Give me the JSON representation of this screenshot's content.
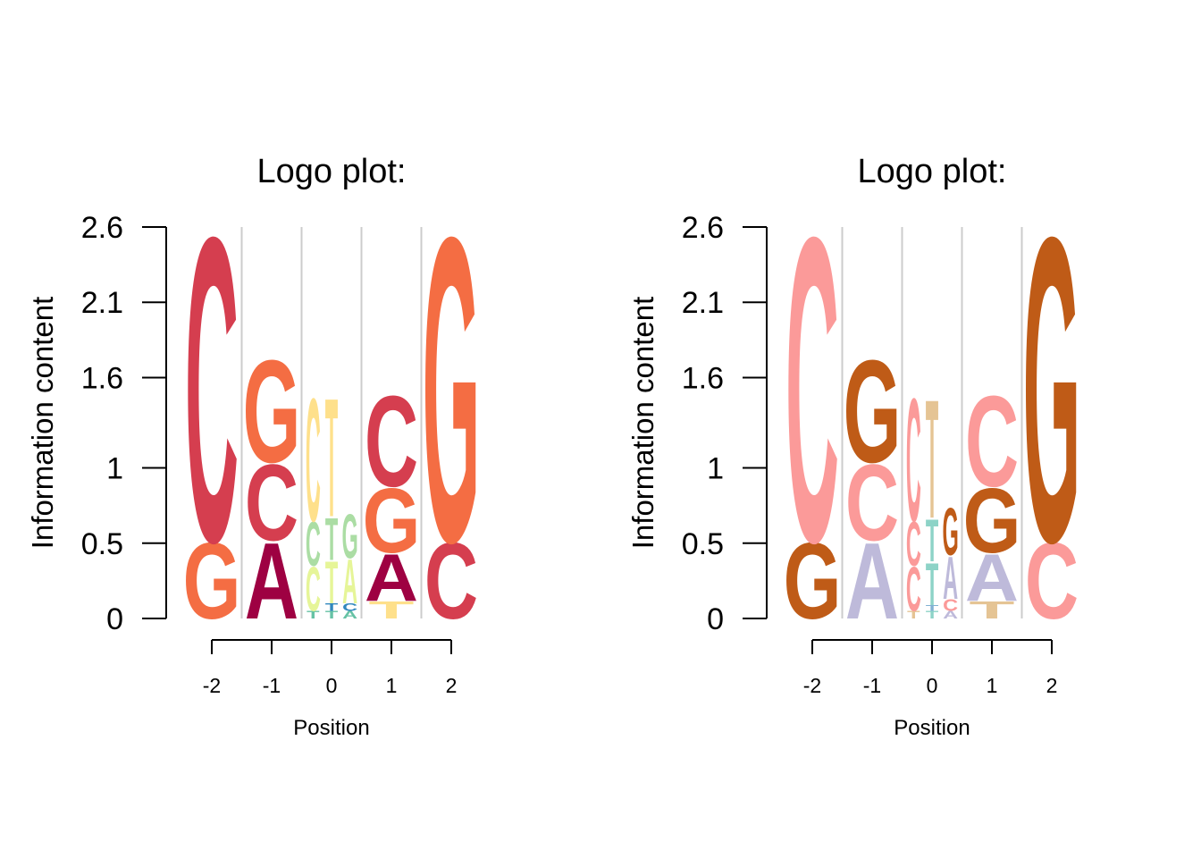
{
  "chart_data": [
    {
      "type": "sequence-logo",
      "title": "Logo plot:",
      "xlabel": "Position",
      "ylabel": "Information content",
      "x_ticks": [
        "-2",
        "-1",
        "0",
        "1",
        "2"
      ],
      "y_ticks": [
        "0",
        "0.5",
        "1",
        "1.6",
        "2.1",
        "2.6"
      ],
      "ylim": [
        0,
        2.6
      ],
      "grid": "vertical lines between positions",
      "colors": {
        "A": "#9E0142",
        "C": "#D53E4F",
        "G": "#F46D43",
        "T": "#FEE08B"
      },
      "positions": [
        {
          "x": "-2",
          "stack": [
            {
              "letter": "G",
              "height": 0.52
            },
            {
              "letter": "C",
              "height": 2.08
            }
          ]
        },
        {
          "x": "-1",
          "stack": [
            {
              "letter": "A",
              "height": 0.52
            },
            {
              "letter": "C",
              "height": 0.52
            },
            {
              "letter": "G",
              "height": 0.7
            }
          ]
        },
        {
          "x": "0",
          "sub": [
            {
              "stack": [
                {
                  "letter": "T",
                  "height": 0.05,
                  "color": "#66C2A5"
                },
                {
                  "letter": "C",
                  "height": 0.3,
                  "color": "#E6F598"
                },
                {
                  "letter": "C",
                  "height": 0.3,
                  "color": "#ABDDA4"
                },
                {
                  "letter": "C",
                  "height": 0.84,
                  "color": "#FEE08B"
                }
              ]
            },
            {
              "stack": [
                {
                  "letter": "T",
                  "height": 0.05,
                  "color": "#66C2A5"
                },
                {
                  "letter": "T",
                  "height": 0.05,
                  "color": "#3288BD"
                },
                {
                  "letter": "T",
                  "height": 0.29,
                  "color": "#E6F598"
                },
                {
                  "letter": "T",
                  "height": 0.29,
                  "color": "#ABDDA4"
                },
                {
                  "letter": "T",
                  "height": 0.81,
                  "color": "#FEE08B"
                }
              ]
            },
            {
              "stack": [
                {
                  "letter": "A",
                  "height": 0.05,
                  "color": "#66C2A5"
                },
                {
                  "letter": "C",
                  "height": 0.05,
                  "color": "#3288BD"
                },
                {
                  "letter": "A",
                  "height": 0.3,
                  "color": "#E6F598"
                },
                {
                  "letter": "G",
                  "height": 0.3,
                  "color": "#ABDDA4"
                }
              ]
            }
          ]
        },
        {
          "x": "1",
          "stack": [
            {
              "letter": "T",
              "height": 0.12
            },
            {
              "letter": "A",
              "height": 0.32
            },
            {
              "letter": "G",
              "height": 0.44
            },
            {
              "letter": "C",
              "height": 0.62
            }
          ]
        },
        {
          "x": "2",
          "stack": [
            {
              "letter": "C",
              "height": 0.52
            },
            {
              "letter": "G",
              "height": 2.08
            }
          ]
        }
      ]
    },
    {
      "type": "sequence-logo",
      "title": "Logo plot:",
      "xlabel": "Position",
      "ylabel": "Information content",
      "x_ticks": [
        "-2",
        "-1",
        "0",
        "1",
        "2"
      ],
      "y_ticks": [
        "0",
        "0.5",
        "1",
        "1.6",
        "2.1",
        "2.6"
      ],
      "ylim": [
        0,
        2.6
      ],
      "grid": "vertical lines between positions",
      "colors": {
        "A": "#BEBADA",
        "C": "#FB9A99",
        "G": "#BF5B17",
        "T": "#E5C494"
      },
      "positions": [
        {
          "x": "-2",
          "stack": [
            {
              "letter": "G",
              "height": 0.52
            },
            {
              "letter": "C",
              "height": 2.08
            }
          ]
        },
        {
          "x": "-1",
          "stack": [
            {
              "letter": "A",
              "height": 0.52
            },
            {
              "letter": "C",
              "height": 0.52
            },
            {
              "letter": "G",
              "height": 0.7
            }
          ]
        },
        {
          "x": "0",
          "sub": [
            {
              "stack": [
                {
                  "letter": "T",
                  "height": 0.05
                },
                {
                  "letter": "C",
                  "height": 0.3
                },
                {
                  "letter": "C",
                  "height": 0.3
                },
                {
                  "letter": "C",
                  "height": 0.84
                }
              ]
            },
            {
              "stack": [
                {
                  "letter": "T",
                  "height": 0.05,
                  "color": "#8DD3C7"
                },
                {
                  "letter": "T",
                  "height": 0.04,
                  "color": "#80B1D3"
                },
                {
                  "letter": "T",
                  "height": 0.29,
                  "color": "#8DD3C7"
                },
                {
                  "letter": "T",
                  "height": 0.29,
                  "color": "#8DD3C7"
                },
                {
                  "letter": "T",
                  "height": 0.81
                }
              ]
            },
            {
              "stack": [
                {
                  "letter": "A",
                  "height": 0.05
                },
                {
                  "letter": "C",
                  "height": 0.08
                },
                {
                  "letter": "A",
                  "height": 0.29
                },
                {
                  "letter": "G",
                  "height": 0.32
                }
              ]
            }
          ]
        },
        {
          "x": "1",
          "stack": [
            {
              "letter": "T",
              "height": 0.12
            },
            {
              "letter": "A",
              "height": 0.32
            },
            {
              "letter": "G",
              "height": 0.44
            },
            {
              "letter": "C",
              "height": 0.62
            }
          ]
        },
        {
          "x": "2",
          "stack": [
            {
              "letter": "C",
              "height": 0.52
            },
            {
              "letter": "G",
              "height": 2.08
            }
          ]
        }
      ]
    }
  ]
}
